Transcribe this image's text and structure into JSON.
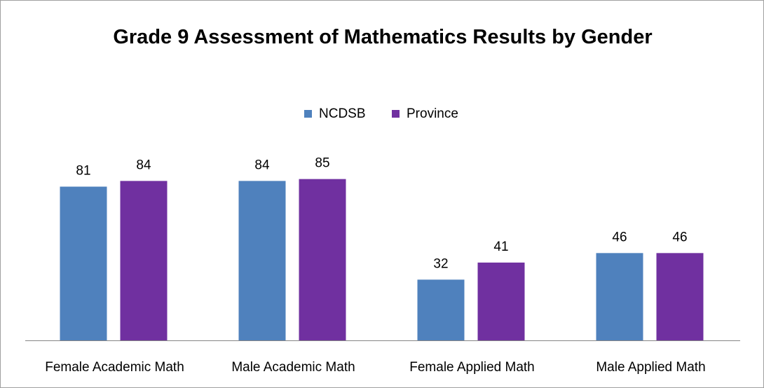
{
  "chart_data": {
    "type": "bar",
    "title": "Grade 9 Assessment of Mathematics Results by Gender",
    "categories": [
      "Female Academic Math",
      "Male Academic Math",
      "Female Applied Math",
      "Male Applied Math"
    ],
    "series": [
      {
        "name": "NCDSB",
        "color": "#4f81bd",
        "values": [
          81,
          84,
          32,
          46
        ]
      },
      {
        "name": "Province",
        "color": "#7030a0",
        "values": [
          84,
          85,
          41,
          46
        ]
      }
    ],
    "legend": "top"
  }
}
